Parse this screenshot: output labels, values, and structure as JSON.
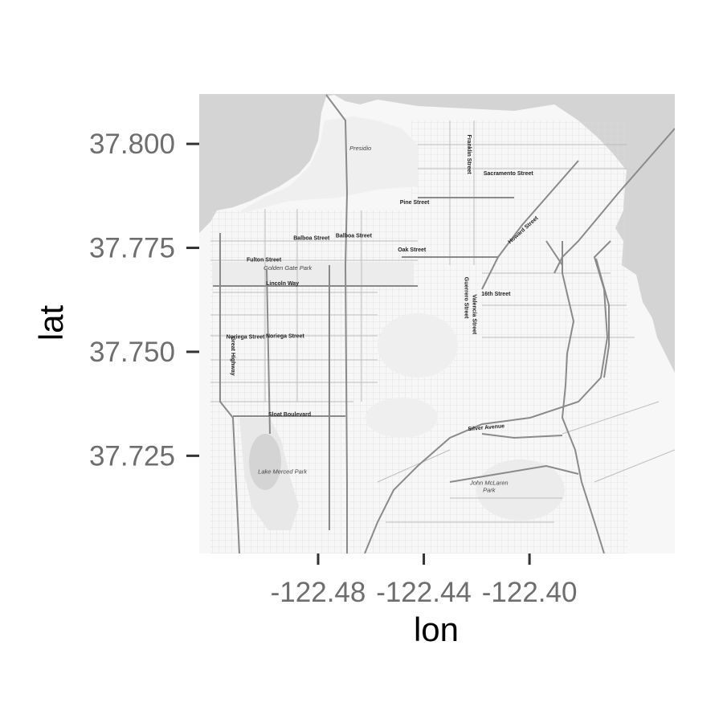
{
  "map": {
    "xlabel": "lon",
    "ylabel": "lat",
    "xlim": [
      -122.525,
      -122.345
    ],
    "ylim": [
      37.7015,
      37.812
    ],
    "x_ticks": [
      {
        "value": -122.48,
        "label": "-122.48"
      },
      {
        "value": -122.44,
        "label": "-122.44"
      },
      {
        "value": -122.4,
        "label": "-122.40"
      }
    ],
    "y_ticks": [
      {
        "value": 37.8,
        "label": "37.800"
      },
      {
        "value": 37.775,
        "label": "37.775"
      },
      {
        "value": 37.75,
        "label": "37.750"
      },
      {
        "value": 37.725,
        "label": "37.725"
      }
    ],
    "colors": {
      "water": "#d4d4d4",
      "land": "#f7f7f7",
      "park": "#ececec",
      "street": "#c9c9c9",
      "major_road": "#8a8a8a",
      "tick_text": "#6e6e6e"
    },
    "labels": [
      {
        "text": "Presidio",
        "kind": "place",
        "lon": -122.464,
        "lat": 37.7985
      },
      {
        "text": "Franklin Street",
        "kind": "street",
        "lon": -122.4235,
        "lat": 37.7975,
        "rotate": 90
      },
      {
        "text": "Sacramento Street",
        "kind": "street",
        "lon": -122.408,
        "lat": 37.7925
      },
      {
        "text": "Pine Street",
        "kind": "street",
        "lon": -122.4435,
        "lat": 37.7855
      },
      {
        "text": "Howard Street",
        "kind": "street",
        "lon": -122.402,
        "lat": 37.779,
        "rotate": -42
      },
      {
        "text": "Balboa Street",
        "kind": "street",
        "lon": -122.4825,
        "lat": 37.7769
      },
      {
        "text": "Balboa Street",
        "kind": "street",
        "lon": -122.4665,
        "lat": 37.7775
      },
      {
        "text": "Oak Street",
        "kind": "street",
        "lon": -122.4445,
        "lat": 37.7741
      },
      {
        "text": "Fulton Street",
        "kind": "street",
        "lon": -122.5005,
        "lat": 37.7717
      },
      {
        "text": "Golden Gate Park",
        "kind": "place",
        "lon": -122.4915,
        "lat": 37.7697
      },
      {
        "text": "Lincoln Way",
        "kind": "street",
        "lon": -122.4935,
        "lat": 37.766
      },
      {
        "text": "Guerrero Street",
        "kind": "street",
        "lon": -122.4245,
        "lat": 37.763,
        "rotate": 90
      },
      {
        "text": "16th Street",
        "kind": "street",
        "lon": -122.4127,
        "lat": 37.7635
      },
      {
        "text": "Valencia Street",
        "kind": "street",
        "lon": -122.4215,
        "lat": 37.759,
        "rotate": 90
      },
      {
        "text": "Great Highway",
        "kind": "street",
        "lon": -122.5128,
        "lat": 37.749,
        "rotate": 90
      },
      {
        "text": "Noriega Street",
        "kind": "street",
        "lon": -122.5075,
        "lat": 37.7532
      },
      {
        "text": "Noriega Street",
        "kind": "street",
        "lon": -122.4925,
        "lat": 37.7534
      },
      {
        "text": "Sloat Boulevard",
        "kind": "street",
        "lon": -122.4908,
        "lat": 37.7345
      },
      {
        "text": "Silver Avenue",
        "kind": "street",
        "lon": -122.4163,
        "lat": 37.7314,
        "rotate": -5
      },
      {
        "text": "Lake Merced Park",
        "kind": "place",
        "lon": -122.4935,
        "lat": 37.7207
      },
      {
        "text": "John McLaren",
        "kind": "place",
        "lon": -122.4153,
        "lat": 37.718
      },
      {
        "text": "Park",
        "kind": "place",
        "lon": -122.4153,
        "lat": 37.7163
      }
    ]
  }
}
